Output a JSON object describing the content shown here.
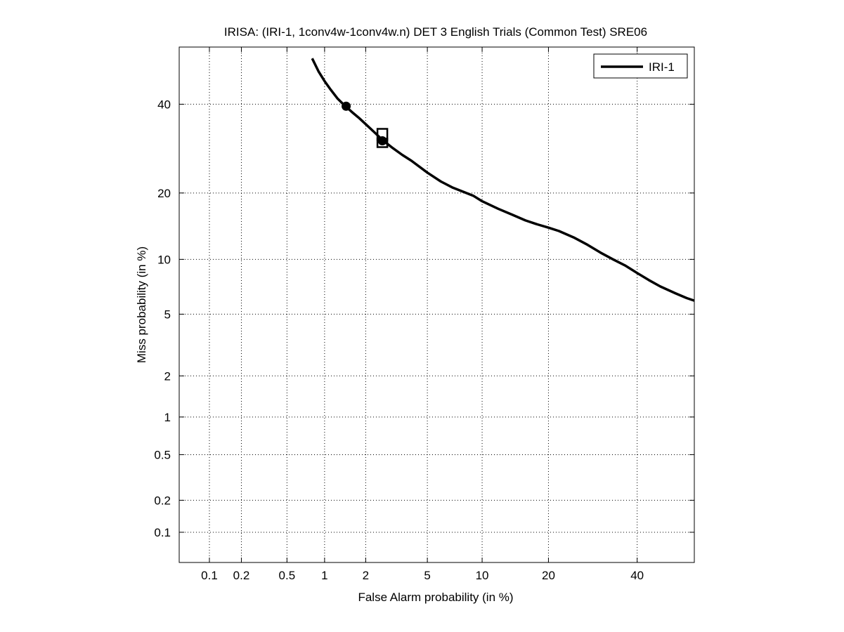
{
  "chart_data": {
    "type": "line",
    "scale": "normal-deviate",
    "title": "IRISA: (IRI-1, 1conv4w-1conv4w.n) DET 3 English Trials (Common Test) SRE06",
    "xlabel": "False Alarm probability (in %)",
    "ylabel": "Miss probability (in %)",
    "xlim": [
      0.05,
      55
    ],
    "ylim": [
      0.05,
      55
    ],
    "x_ticks": [
      0.1,
      0.2,
      0.5,
      1,
      2,
      5,
      10,
      20,
      40
    ],
    "x_tick_labels": [
      "0.1",
      "0.2",
      "0.5",
      "1",
      "2",
      "5",
      "10",
      "20",
      "40"
    ],
    "y_ticks": [
      0.1,
      0.2,
      0.5,
      1,
      2,
      5,
      10,
      20,
      40
    ],
    "y_tick_labels": [
      "0.1",
      "0.2",
      "0.5",
      "1",
      "2",
      "5",
      "10",
      "20",
      "40"
    ],
    "grid": true,
    "legend": {
      "position": "top-right",
      "entries": [
        "IRI-1"
      ]
    },
    "series": [
      {
        "name": "IRI-1",
        "color": "#000000",
        "x": [
          0.8,
          0.9,
          1.0,
          1.1,
          1.25,
          1.4,
          1.6,
          1.8,
          2.0,
          2.3,
          2.6,
          3.0,
          3.5,
          4.0,
          5.0,
          6.0,
          7.0,
          8.0,
          9.0,
          10.0,
          12.0,
          14.0,
          16.0,
          18.0,
          20.0,
          22.0,
          25.0,
          28.0,
          31.0,
          34.0,
          37.0,
          40.0,
          43.0,
          46.0,
          50.0,
          53.0,
          55.0
        ],
        "y": [
          52.0,
          48.5,
          46.0,
          44.0,
          41.5,
          39.8,
          38.0,
          36.5,
          35.0,
          33.0,
          31.2,
          29.5,
          27.8,
          26.5,
          24.0,
          22.2,
          21.0,
          20.2,
          19.5,
          18.5,
          17.2,
          16.2,
          15.3,
          14.7,
          14.2,
          13.7,
          12.8,
          11.8,
          10.8,
          10.0,
          9.3,
          8.5,
          7.8,
          7.2,
          6.6,
          6.2,
          6.0
        ]
      }
    ],
    "markers": [
      {
        "shape": "circle",
        "x": 1.45,
        "y": 39.5
      },
      {
        "shape": "circle",
        "x": 2.6,
        "y": 31.0
      },
      {
        "shape": "square",
        "x": 2.6,
        "y": 32.5
      }
    ]
  }
}
